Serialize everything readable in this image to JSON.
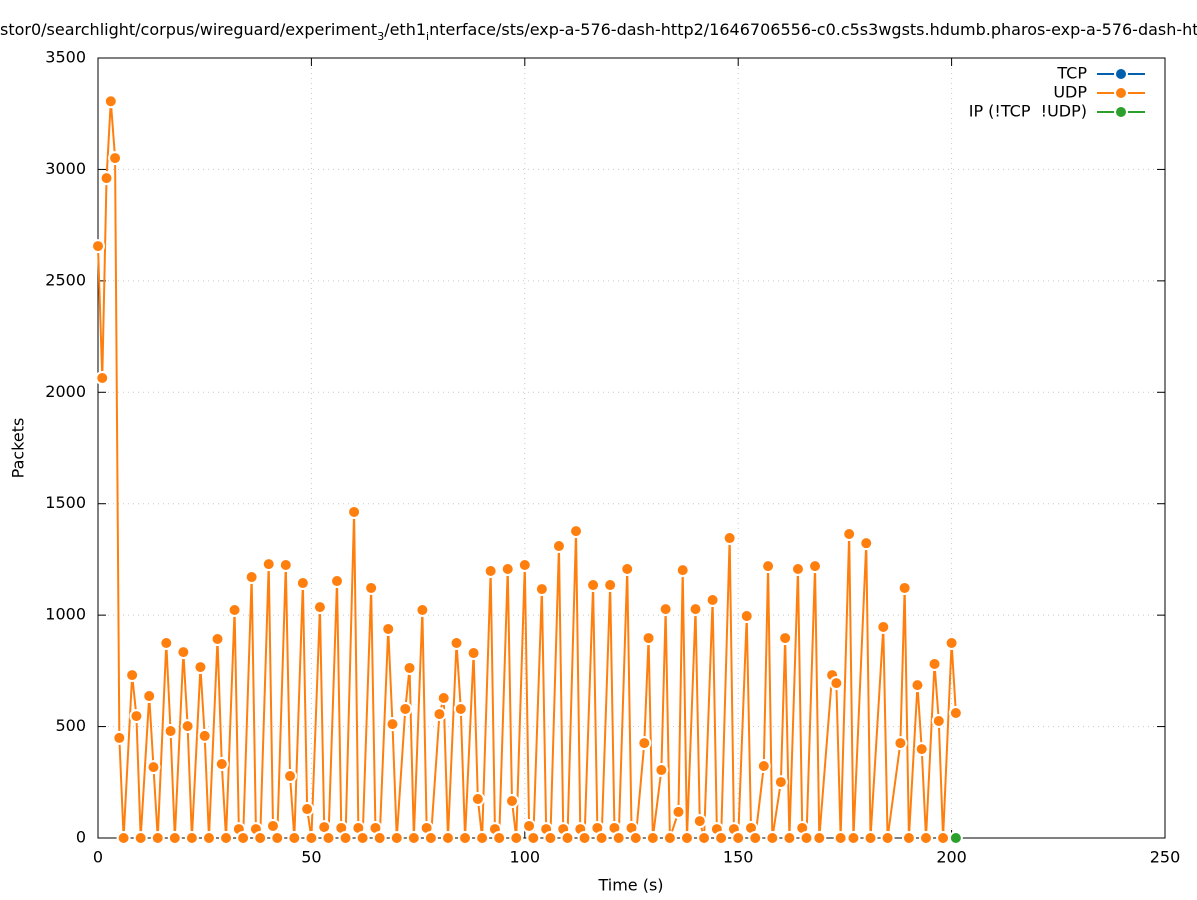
{
  "chart_data": {
    "type": "line",
    "title_segments": [
      {
        "text": "stor0/searchlight/corpus/wireguard/experiment",
        "sub": false
      },
      {
        "text": "3",
        "sub": true
      },
      {
        "text": "/eth1",
        "sub": false
      },
      {
        "text": "i",
        "sub": true
      },
      {
        "text": "nterface/sts/exp-a-576-dash-http2/1646706556-c0.c5s3wgsts.hdumb.pharos-exp-a-576-dash-ht",
        "sub": false
      }
    ],
    "xlabel": "Time (s)",
    "ylabel": "Packets",
    "xlim": [
      0,
      250
    ],
    "ylim": [
      0,
      3500
    ],
    "xticks": [
      0,
      50,
      100,
      150,
      200,
      250
    ],
    "yticks": [
      0,
      500,
      1000,
      1500,
      2000,
      2500,
      3000,
      3500
    ],
    "grid": true,
    "legend": "top-right",
    "series": [
      {
        "name": "TCP",
        "color": "#0060ad",
        "x": [],
        "values": []
      },
      {
        "name": "UDP",
        "color": "#ff7f0e",
        "x": [
          0,
          1,
          2,
          3,
          4,
          5,
          6,
          8,
          9,
          10,
          12,
          13,
          14,
          16,
          17,
          18,
          20,
          21,
          22,
          24,
          25,
          26,
          28,
          29,
          30,
          32,
          33,
          34,
          36,
          37,
          38,
          40,
          41,
          42,
          44,
          45,
          46,
          48,
          49,
          50,
          52,
          53,
          54,
          56,
          57,
          58,
          60,
          61,
          62,
          64,
          65,
          66,
          68,
          69,
          70,
          72,
          73,
          74,
          76,
          77,
          78,
          80,
          81,
          82,
          84,
          85,
          86,
          88,
          89,
          90,
          92,
          93,
          94,
          96,
          97,
          98,
          100,
          101,
          102,
          104,
          105,
          106,
          108,
          109,
          110,
          112,
          113,
          114,
          116,
          117,
          118,
          120,
          121,
          122,
          124,
          125,
          126,
          128,
          129,
          130,
          132,
          133,
          134,
          136,
          137,
          138,
          140,
          141,
          142,
          144,
          145,
          146,
          148,
          149,
          150,
          152,
          153,
          154,
          156,
          157,
          158,
          160,
          161,
          162,
          164,
          165,
          166,
          168,
          169,
          172,
          173,
          174,
          176,
          177,
          180,
          181,
          184,
          185,
          188,
          189,
          190,
          192,
          193,
          194,
          196,
          197,
          198,
          200,
          201
        ],
        "values": [
          2656,
          2064,
          2961,
          3306,
          3051,
          449,
          0,
          731,
          547,
          0,
          637,
          318,
          0,
          875,
          480,
          0,
          834,
          502,
          0,
          767,
          458,
          0,
          893,
          332,
          0,
          1023,
          40,
          0,
          1171,
          40,
          0,
          1229,
          54,
          0,
          1225,
          278,
          0,
          1144,
          130,
          0,
          1036,
          49,
          0,
          1153,
          45,
          0,
          1463,
          45,
          0,
          1122,
          45,
          0,
          938,
          511,
          0,
          579,
          763,
          0,
          1023,
          45,
          0,
          556,
          628,
          0,
          875,
          579,
          0,
          830,
          175,
          0,
          1198,
          40,
          0,
          1207,
          166,
          0,
          1225,
          54,
          0,
          1117,
          40,
          0,
          1310,
          40,
          0,
          1377,
          40,
          0,
          1135,
          45,
          0,
          1135,
          45,
          0,
          1207,
          45,
          0,
          426,
          897,
          0,
          305,
          1027,
          0,
          117,
          1202,
          0,
          1027,
          76,
          0,
          1068,
          40,
          0,
          1346,
          40,
          0,
          996,
          45,
          0,
          323,
          1220,
          0,
          251,
          897,
          0,
          1207,
          45,
          0,
          1220,
          0,
          731,
          695,
          0,
          1364,
          0,
          1323,
          0,
          947,
          0,
          426,
          1122,
          0,
          686,
          399,
          0,
          781,
          525,
          0,
          875,
          561
        ]
      },
      {
        "name": "IP (!TCP  !UDP)",
        "color": "#2ca02c",
        "x": [
          201
        ],
        "values": [
          0
        ]
      }
    ]
  }
}
